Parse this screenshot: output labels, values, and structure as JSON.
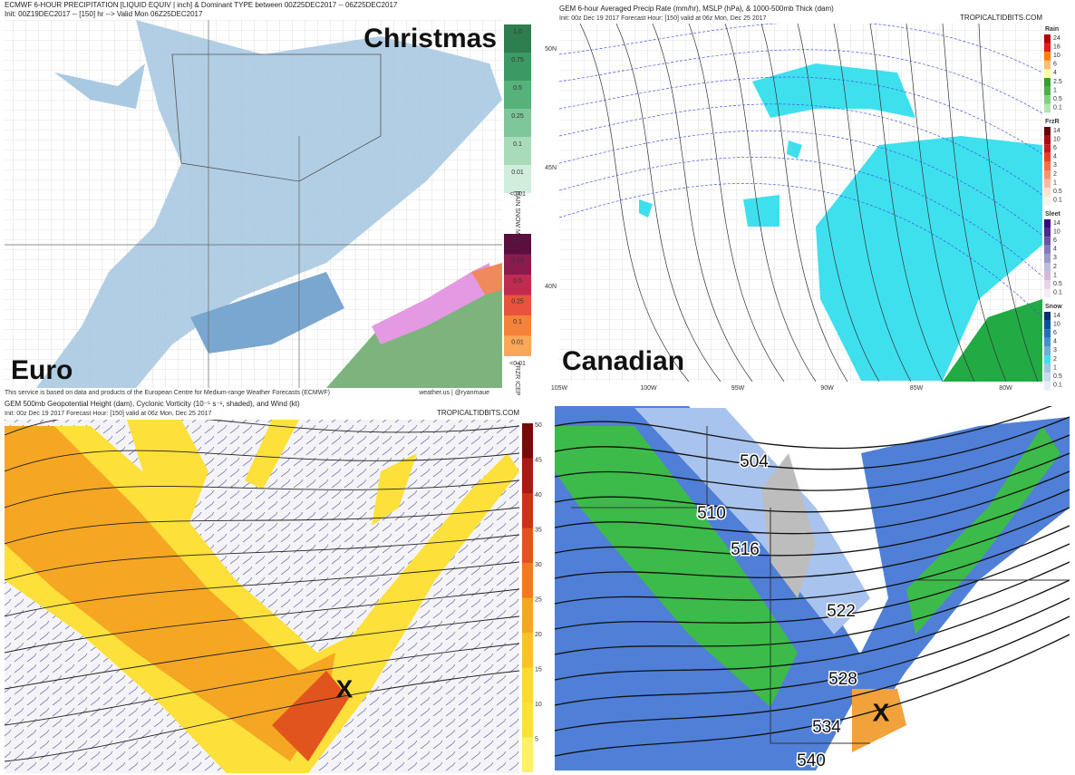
{
  "euro": {
    "title": "ECMWF 6-HOUR PRECIPITATION [LIQUID EQUIV | inch] & Dominant TYPE between 00Z25DEC2017 -- 06Z25DEC2017",
    "init": "Init: 00Z19DEC2017 -- [150] hr --> Valid Mon 06Z25DEC2017",
    "tag_top": "Christmas",
    "tag_bottom": "Euro",
    "snow_scale": [
      "1.0",
      "0.75",
      "0.5",
      "0.25",
      "0.1",
      "0.01"
    ],
    "snow_below": "<0.01",
    "snow_types": "RAIN SNOW MIX",
    "ice_scale": [
      "1.0",
      "0.75",
      "0.5",
      "0.25",
      "0.1",
      "0.01"
    ],
    "ice_below": "<0.01",
    "ice_types": "FRZR ICEP",
    "footer": "This service is based on data and products of the European Centre for Medium-range Weather Forecasts (ECMWF)",
    "credit": "weather.us | @ryanmaue"
  },
  "canadian": {
    "title": "GEM 6-hour Averaged Precip Rate (mm/hr), MSLP (hPa), & 1000-500mb Thick (dam)",
    "init": "Init: 00z Dec 19 2017   Forecast Hour: [150]   valid at 06z Mon, Dec 25 2017",
    "site": "TROPICALTIDBITS.COM",
    "tag": "Canadian",
    "lat_labels": [
      "50N",
      "45N",
      "40N"
    ],
    "lon_labels": [
      "105W",
      "100W",
      "95W",
      "90W",
      "85W",
      "80W"
    ],
    "legends": [
      {
        "name": "Rain",
        "ticks": [
          "24",
          "16",
          "10",
          "6",
          "4",
          "2.5",
          "1",
          "0.5",
          "0.1"
        ]
      },
      {
        "name": "FrzR",
        "ticks": [
          "14",
          "10",
          "6",
          "4",
          "3",
          "2",
          "1",
          "0.5",
          "0.1"
        ]
      },
      {
        "name": "Sleet",
        "ticks": [
          "14",
          "10",
          "6",
          "4",
          "3",
          "2",
          "1",
          "0.5",
          "0.1"
        ]
      },
      {
        "name": "Snow",
        "ticks": [
          "14",
          "10",
          "6",
          "4",
          "3",
          "2",
          "1",
          "0.5",
          "0.1"
        ]
      }
    ]
  },
  "vorticity": {
    "title": "GEM 500mb Geopotential Height (dam), Cyclonic Vorticity (10⁻⁵ s⁻¹, shaded), and Wind (kt)",
    "init": "Init: 00z Dec 19 2017   Forecast Hour: [150]   valid at 06z Mon, Dec 25 2017",
    "site": "TROPICALTIDBITS.COM",
    "mark": "X",
    "colorbar": [
      "50",
      "45",
      "40",
      "35",
      "30",
      "25",
      "20",
      "15",
      "10",
      "5"
    ]
  },
  "thickness": {
    "contour_labels": [
      "504",
      "510",
      "516",
      "522",
      "528",
      "534",
      "540"
    ],
    "mark": "X"
  }
}
